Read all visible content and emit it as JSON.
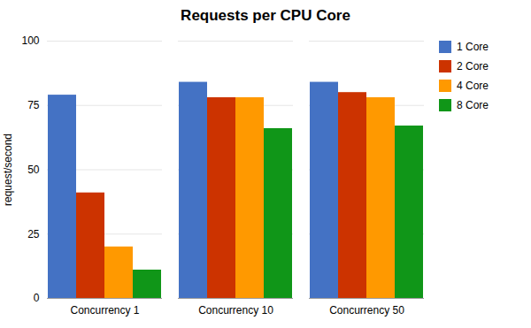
{
  "chart_data": {
    "type": "bar",
    "title": "Requests per CPU Core",
    "ylabel": "request/second",
    "categories": [
      "Concurrency 1",
      "Concurrency 10",
      "Concurrency 50"
    ],
    "series": [
      {
        "name": "1 Core",
        "color": "#4472C4",
        "values": [
          79,
          84,
          84
        ]
      },
      {
        "name": "2 Core",
        "color": "#CC3300",
        "values": [
          41,
          78,
          80
        ]
      },
      {
        "name": "4 Core",
        "color": "#FF9900",
        "values": [
          20,
          78,
          78
        ]
      },
      {
        "name": "8 Core",
        "color": "#109618",
        "values": [
          11,
          66,
          67
        ]
      }
    ],
    "ylim": [
      0,
      100
    ],
    "yticks": [
      0,
      25,
      50,
      75,
      100
    ],
    "grid": true,
    "legend": "right"
  }
}
